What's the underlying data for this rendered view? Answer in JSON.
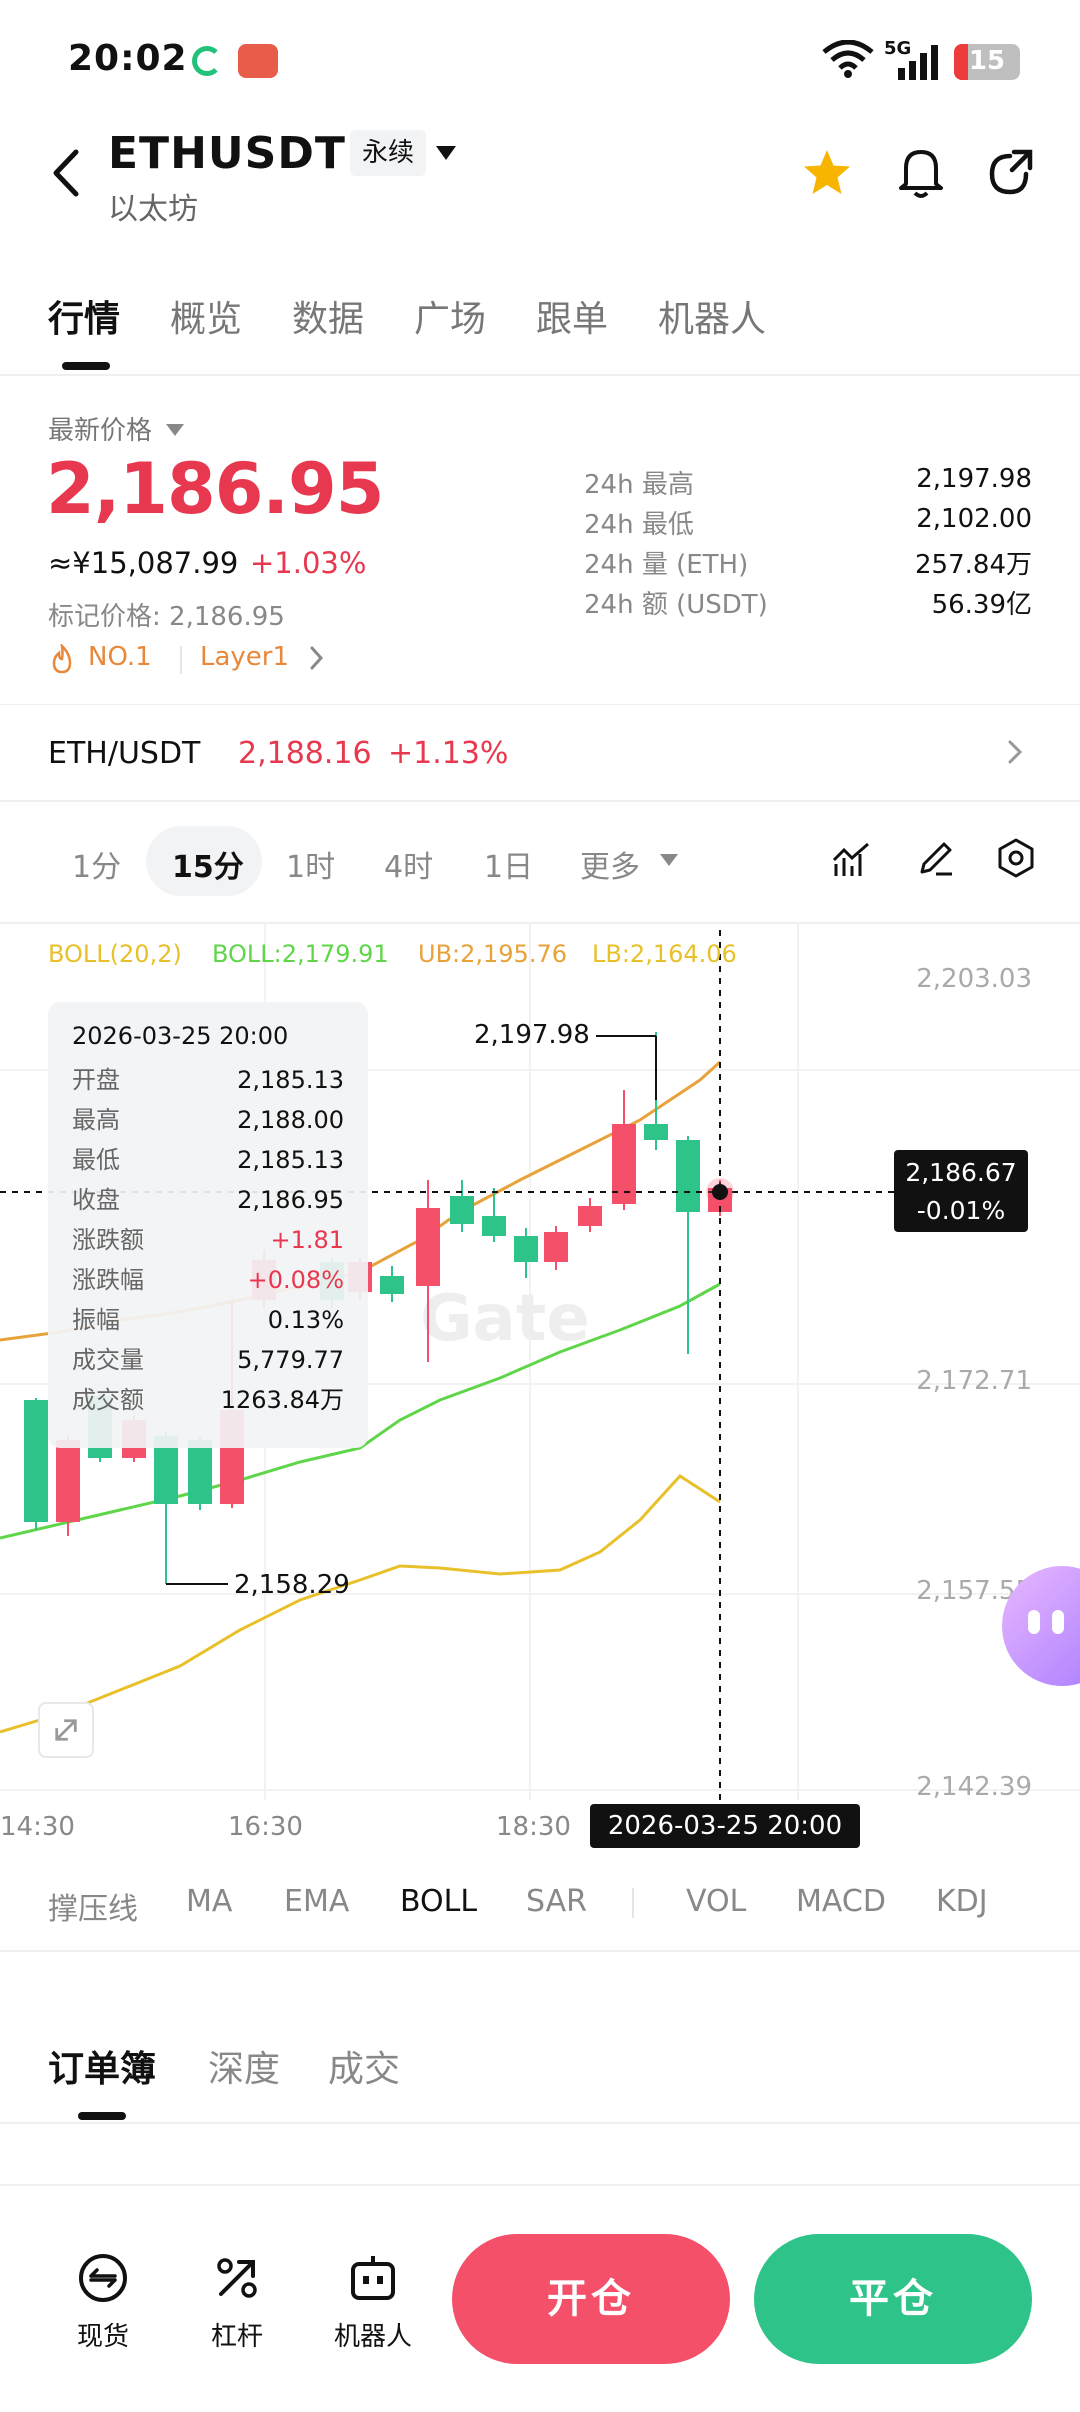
{
  "status_bar": {
    "time": "20:02",
    "network": "5G",
    "battery": "15"
  },
  "header": {
    "symbol": "ETHUSDT",
    "contract_type": "永续",
    "name": "以太坊"
  },
  "tabs": [
    "行情",
    "概览",
    "数据",
    "广场",
    "跟单",
    "机器人"
  ],
  "price": {
    "label": "最新价格",
    "last": "2,186.95",
    "cny": "≈¥15,087.99",
    "change": "+1.03%",
    "mark": "标记价格: 2,186.95",
    "tag_rank": "NO.1",
    "tag_sector": "Layer1"
  },
  "stats": [
    {
      "label": "24h  最高",
      "value": "2,197.98"
    },
    {
      "label": "24h  最低",
      "value": "2,102.00"
    },
    {
      "label": "24h  量 (ETH)",
      "value": "257.84万"
    },
    {
      "label": "24h  额 (USDT)",
      "value": "56.39亿"
    }
  ],
  "index": {
    "pair": "ETH/USDT",
    "price": "2,188.16",
    "change": "+1.13%"
  },
  "intervals": [
    "1分",
    "15分",
    "1时",
    "4时",
    "1日",
    "更多"
  ],
  "active_interval": "15分",
  "chart": {
    "legend": {
      "name": "BOLL(20,2)",
      "boll": "BOLL:2,179.91",
      "ub": "UB:2,195.76",
      "lb": "LB:2,164.06"
    },
    "y_labels": [
      "2,203.03",
      "2,172.71",
      "2,157.55",
      "2,142.39"
    ],
    "x_labels": [
      "14:30",
      "16:30",
      "18:30"
    ],
    "crosshair_time": "2026-03-25 20:00",
    "crosshair_price": "2,186.67",
    "crosshair_pct": "-0.01%",
    "high_marker": "2,197.98",
    "low_marker": "2,158.29",
    "watermark": "Gate"
  },
  "tooltip": {
    "date": "2026-03-25 20:00",
    "rows": [
      {
        "k": "开盘",
        "v": "2,185.13"
      },
      {
        "k": "最高",
        "v": "2,188.00"
      },
      {
        "k": "最低",
        "v": "2,185.13"
      },
      {
        "k": "收盘",
        "v": "2,186.95"
      },
      {
        "k": "涨跌额",
        "v": "+1.81"
      },
      {
        "k": "涨跌幅",
        "v": "+0.08%"
      },
      {
        "k": "振幅",
        "v": "0.13%"
      },
      {
        "k": "成交量",
        "v": "5,779.77"
      },
      {
        "k": "成交额",
        "v": "1263.84万"
      }
    ]
  },
  "indicators": [
    "撑压线",
    "MA",
    "EMA",
    "BOLL",
    "SAR",
    "VOL",
    "MACD",
    "KDJ"
  ],
  "active_indicator": "BOLL",
  "orderbook_tabs": [
    "订单簿",
    "深度",
    "成交"
  ],
  "bottom_nav": [
    "现货",
    "杠杆",
    "机器人"
  ],
  "actions": {
    "open": "开仓",
    "close": "平仓"
  },
  "colors": {
    "up": "#2ec388",
    "down": "#f4506a",
    "ub": "#e8a23a",
    "mid": "#5fd64a",
    "lb": "#e8c02a"
  }
}
